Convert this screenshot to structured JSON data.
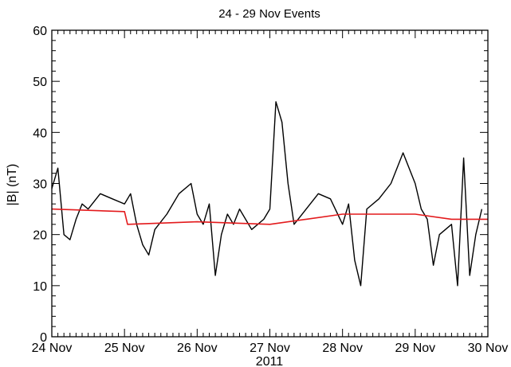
{
  "chart_data": {
    "type": "line",
    "title": "24 - 29 Nov Events",
    "xlabel": "2011",
    "ylabel": "|B| (nT)",
    "xlim": [
      "24 Nov",
      "30 Nov"
    ],
    "ylim": [
      0,
      60
    ],
    "x_tick_labels": [
      "24 Nov",
      "25 Nov",
      "26 Nov",
      "27 Nov",
      "28 Nov",
      "29 Nov",
      "30 Nov"
    ],
    "y_tick_labels": [
      "0",
      "10",
      "20",
      "30",
      "40",
      "50",
      "60"
    ],
    "grid": false,
    "legend": "none",
    "series": [
      {
        "color": "#000000",
        "x": [
          "24 Nov 00:00",
          "24 Nov 02:00",
          "24 Nov 04:00",
          "24 Nov 06:00",
          "24 Nov 08:00",
          "24 Nov 10:00",
          "24 Nov 12:00",
          "24 Nov 16:00",
          "24 Nov 20:00",
          "25 Nov 00:00",
          "25 Nov 02:00",
          "25 Nov 04:00",
          "25 Nov 06:00",
          "25 Nov 08:00",
          "25 Nov 10:00",
          "25 Nov 14:00",
          "25 Nov 18:00",
          "25 Nov 22:00",
          "26 Nov 00:00",
          "26 Nov 02:00",
          "26 Nov 04:00",
          "26 Nov 06:00",
          "26 Nov 08:00",
          "26 Nov 10:00",
          "26 Nov 12:00",
          "26 Nov 14:00",
          "26 Nov 18:00",
          "26 Nov 22:00",
          "27 Nov 00:00",
          "27 Nov 02:00",
          "27 Nov 04:00",
          "27 Nov 06:00",
          "27 Nov 08:00",
          "27 Nov 12:00",
          "27 Nov 16:00",
          "27 Nov 20:00",
          "28 Nov 00:00",
          "28 Nov 02:00",
          "28 Nov 04:00",
          "28 Nov 06:00",
          "28 Nov 08:00",
          "28 Nov 12:00",
          "28 Nov 16:00",
          "28 Nov 20:00",
          "29 Nov 00:00",
          "29 Nov 02:00",
          "29 Nov 04:00",
          "29 Nov 06:00",
          "29 Nov 08:00",
          "29 Nov 12:00",
          "29 Nov 14:00",
          "29 Nov 16:00",
          "29 Nov 18:00",
          "29 Nov 20:00",
          "29 Nov 22:00"
        ],
        "y": [
          29,
          33,
          20,
          19,
          23,
          26,
          25,
          28,
          27,
          26,
          28,
          22,
          18,
          16,
          21,
          24,
          28,
          30,
          24,
          22,
          26,
          12,
          20,
          24,
          22,
          25,
          21,
          23,
          25,
          46,
          42,
          30,
          22,
          25,
          28,
          27,
          22,
          26,
          15,
          10,
          25,
          27,
          30,
          36,
          30,
          25,
          23,
          14,
          20,
          22,
          10,
          35,
          12,
          20,
          25
        ]
      },
      {
        "color": "#e31a1c",
        "x": [
          "24 Nov 00:00",
          "25 Nov 00:00",
          "25 Nov 01:00",
          "26 Nov 00:00",
          "27 Nov 00:00",
          "27 Nov 12:00",
          "28 Nov 00:00",
          "29 Nov 00:00",
          "29 Nov 12:00",
          "30 Nov 00:00"
        ],
        "y": [
          25,
          24.5,
          22,
          22.5,
          22,
          23,
          24,
          24,
          23,
          23
        ]
      }
    ]
  }
}
